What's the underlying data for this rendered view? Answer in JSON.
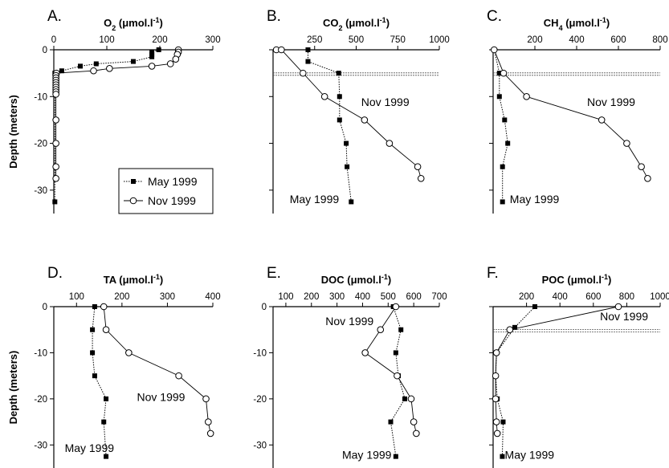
{
  "chart_data": [
    {
      "id": "A",
      "type": "line",
      "letter": "A.",
      "title_main": "O",
      "title_sub": "2",
      "title_units": " (μmol.l",
      "title_exp": "-1",
      "title_close": ")",
      "xlim": [
        0,
        300
      ],
      "xticks": [
        0,
        100,
        200,
        300
      ],
      "ylim": [
        -35,
        0
      ],
      "yticks": [
        0,
        -10,
        -20,
        -30
      ],
      "ylabel": "Depth (meters)",
      "grid": false,
      "series": [
        {
          "name": "May 1999",
          "marker": "square",
          "style": "dotted",
          "points": [
            [
              198,
              0
            ],
            [
              185,
              -0.5
            ],
            [
              185,
              -1
            ],
            [
              185,
              -1.5
            ],
            [
              150,
              -2.5
            ],
            [
              80,
              -3
            ],
            [
              50,
              -3.5
            ],
            [
              15,
              -4.5
            ],
            [
              2,
              -5
            ],
            [
              2,
              -32.5
            ]
          ]
        },
        {
          "name": "Nov 1999",
          "marker": "circle",
          "style": "solid",
          "points": [
            [
              235,
              0
            ],
            [
              235,
              -0.5
            ],
            [
              233,
              -1
            ],
            [
              230,
              -2
            ],
            [
              220,
              -3
            ],
            [
              185,
              -3.5
            ],
            [
              105,
              -4
            ],
            [
              75,
              -4.5
            ],
            [
              5,
              -5
            ],
            [
              4,
              -5.5
            ],
            [
              4,
              -6
            ],
            [
              4,
              -6.5
            ],
            [
              4,
              -7
            ],
            [
              4,
              -7.5
            ],
            [
              4,
              -8
            ],
            [
              4,
              -8.5
            ],
            [
              4,
              -9
            ],
            [
              4,
              -9.5
            ],
            [
              4,
              -15
            ],
            [
              4,
              -20
            ],
            [
              4,
              -25
            ],
            [
              4,
              -27.5
            ]
          ]
        }
      ],
      "legend": {
        "position": "bottom-right",
        "entries": [
          "May 1999",
          "Nov 1999"
        ]
      },
      "annotations": []
    },
    {
      "id": "B",
      "type": "line",
      "letter": "B.",
      "title_main": "CO",
      "title_sub": "2",
      "title_units": " (μmol.l",
      "title_exp": "-1",
      "title_close": ")",
      "xlim": [
        0,
        1000
      ],
      "xticks": [
        250,
        500,
        750,
        1000
      ],
      "ylim": [
        -35,
        0
      ],
      "yticks": [],
      "grid": false,
      "thermocline": -5.2,
      "series": [
        {
          "name": "May 1999",
          "marker": "square",
          "style": "dotted",
          "points": [
            [
              210,
              0
            ],
            [
              210,
              -2.5
            ],
            [
              395,
              -5
            ],
            [
              400,
              -10
            ],
            [
              400,
              -15
            ],
            [
              440,
              -20
            ],
            [
              445,
              -25
            ],
            [
              470,
              -32.5
            ]
          ]
        },
        {
          "name": "Nov 1999",
          "marker": "circle",
          "style": "solid",
          "points": [
            [
              20,
              0
            ],
            [
              50,
              0
            ],
            [
              180,
              -5
            ],
            [
              310,
              -10
            ],
            [
              550,
              -15
            ],
            [
              700,
              -20
            ],
            [
              870,
              -25
            ],
            [
              890,
              -27.5
            ]
          ]
        }
      ],
      "annotations": [
        {
          "text": "Nov 1999",
          "x": 530,
          "y": -12
        },
        {
          "text": "May 1999",
          "x": 100,
          "y": -32.8
        }
      ]
    },
    {
      "id": "C",
      "type": "line",
      "letter": "C.",
      "title_main": "CH",
      "title_sub": "4",
      "title_units": " (μmol.l",
      "title_exp": "-1",
      "title_close": ")",
      "xlim": [
        0,
        800
      ],
      "xticks": [
        200,
        400,
        600,
        800
      ],
      "ylim": [
        -35,
        0
      ],
      "yticks": [],
      "grid": false,
      "thermocline": -5.2,
      "series": [
        {
          "name": "May 1999",
          "marker": "square",
          "style": "dotted",
          "points": [
            [
              5,
              0
            ],
            [
              30,
              -5
            ],
            [
              30,
              -10
            ],
            [
              55,
              -15
            ],
            [
              70,
              -20
            ],
            [
              45,
              -25
            ],
            [
              45,
              -32.5
            ]
          ]
        },
        {
          "name": "Nov 1999",
          "marker": "circle",
          "style": "solid",
          "points": [
            [
              5,
              0
            ],
            [
              50,
              -5
            ],
            [
              160,
              -10
            ],
            [
              520,
              -15
            ],
            [
              640,
              -20
            ],
            [
              710,
              -25
            ],
            [
              740,
              -27.5
            ]
          ]
        }
      ],
      "annotations": [
        {
          "text": "Nov 1999",
          "x": 450,
          "y": -12
        },
        {
          "text": "May 1999",
          "x": 80,
          "y": -32.8
        }
      ]
    },
    {
      "id": "D",
      "type": "line",
      "letter": "D.",
      "title_main": "TA",
      "title_sub": "",
      "title_units": " (μmol.l",
      "title_exp": "-1",
      "title_close": ")",
      "xlim": [
        50,
        400
      ],
      "xticks": [
        100,
        200,
        300,
        400
      ],
      "ylim": [
        -35,
        0
      ],
      "yticks": [
        0,
        -10,
        -20,
        -30
      ],
      "ylabel": "Depth (meters)",
      "grid": false,
      "series": [
        {
          "name": "May 1999",
          "marker": "square",
          "style": "dotted",
          "points": [
            [
              140,
              0
            ],
            [
              135,
              -5
            ],
            [
              135,
              -10
            ],
            [
              140,
              -15
            ],
            [
              165,
              -20
            ],
            [
              160,
              -25
            ],
            [
              165,
              -32.5
            ]
          ]
        },
        {
          "name": "Nov 1999",
          "marker": "circle",
          "style": "solid",
          "points": [
            [
              160,
              0
            ],
            [
              165,
              -5
            ],
            [
              215,
              -10
            ],
            [
              325,
              -15
            ],
            [
              385,
              -20
            ],
            [
              390,
              -25
            ],
            [
              395,
              -27.5
            ]
          ]
        }
      ],
      "annotations": [
        {
          "text": "Nov 1999",
          "x": 233,
          "y": -20.5
        },
        {
          "text": "May 1999",
          "x": 74,
          "y": -31.5
        }
      ]
    },
    {
      "id": "E",
      "type": "line",
      "letter": "E.",
      "title_main": "DOC",
      "title_sub": "",
      "title_units": " (μmol.l",
      "title_exp": "-1",
      "title_close": ")",
      "xlim": [
        50,
        700
      ],
      "xticks": [
        100,
        200,
        300,
        400,
        500,
        600,
        700
      ],
      "ylim": [
        -35,
        0
      ],
      "yticks": [
        0,
        -10,
        -20,
        -30
      ],
      "grid": false,
      "series": [
        {
          "name": "May 1999",
          "marker": "square",
          "style": "dotted",
          "points": [
            [
              520,
              0
            ],
            [
              550,
              -5
            ],
            [
              530,
              -10
            ],
            [
              540,
              -15
            ],
            [
              565,
              -20
            ],
            [
              510,
              -25
            ],
            [
              530,
              -32.5
            ]
          ]
        },
        {
          "name": "Nov 1999",
          "marker": "circle",
          "style": "solid",
          "points": [
            [
              530,
              0
            ],
            [
              470,
              -5
            ],
            [
              410,
              -10
            ],
            [
              535,
              -15
            ],
            [
              590,
              -20
            ],
            [
              600,
              -25
            ],
            [
              610,
              -27.5
            ]
          ]
        }
      ],
      "annotations": [
        {
          "text": "Nov 1999",
          "x": 255,
          "y": -4
        },
        {
          "text": "May 1999",
          "x": 320,
          "y": -33
        }
      ]
    },
    {
      "id": "F",
      "type": "line",
      "letter": "F.",
      "title_main": "POC",
      "title_sub": "",
      "title_units": " (μmol.l",
      "title_exp": "-1",
      "title_close": ")",
      "xlim": [
        0,
        1000
      ],
      "xticks": [
        200,
        400,
        600,
        800,
        1000
      ],
      "ylim": [
        -35,
        0
      ],
      "yticks": [],
      "grid": false,
      "thermocline": -5.2,
      "series": [
        {
          "name": "May 1999",
          "marker": "square",
          "style": "dotted",
          "points": [
            [
              250,
              0
            ],
            [
              130,
              -4.5
            ],
            [
              20,
              -10
            ],
            [
              15,
              -15
            ],
            [
              25,
              -20
            ],
            [
              60,
              -25
            ],
            [
              55,
              -32.5
            ]
          ]
        },
        {
          "name": "Nov 1999",
          "marker": "circle",
          "style": "solid",
          "points": [
            [
              750,
              0
            ],
            [
              100,
              -5
            ],
            [
              20,
              -10
            ],
            [
              15,
              -15
            ],
            [
              15,
              -20
            ],
            [
              20,
              -25
            ],
            [
              25,
              -27.5
            ]
          ]
        }
      ],
      "annotations": [
        {
          "text": "Nov 1999",
          "x": 640,
          "y": -3
        },
        {
          "text": "May 1999",
          "x": 70,
          "y": -33
        }
      ]
    }
  ]
}
